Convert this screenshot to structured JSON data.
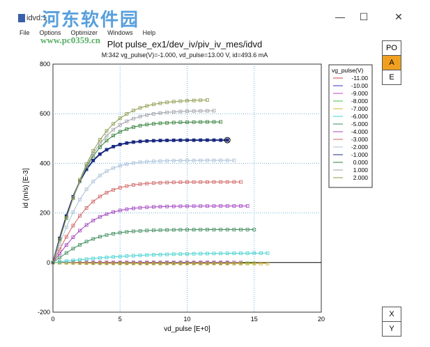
{
  "window": {
    "title": "idvd:1",
    "minimize": "—",
    "maximize": "☐",
    "close": "✕"
  },
  "watermark": {
    "name": "河东软件园",
    "url": "www.pc0359.cn"
  },
  "menu": [
    "File",
    "Options",
    "Optimizer",
    "Windows",
    "Help"
  ],
  "plot": {
    "title": "Plot pulse_ex1/dev_iv/piv_iv_mes/idvd",
    "marker_info": "M:342 vg_pulse(V)=-1.000, vd_pulse=13.00  V, id=493.6  mA"
  },
  "side_buttons": {
    "po": "PO",
    "a": "A",
    "e": "E",
    "x": "X",
    "y": "Y"
  },
  "chart_data": {
    "type": "line",
    "xlabel": "vd_pulse  [E+0]",
    "ylabel": "id (m/s)  [E-3]",
    "xlim": [
      0,
      20
    ],
    "ylim": [
      -200,
      800
    ],
    "xticks": [
      "0",
      "5",
      "10",
      "15",
      "20"
    ],
    "yticks": [
      "-200",
      "0",
      "200",
      "400",
      "600",
      "800"
    ],
    "legend_title": "vg_pulse(V)",
    "legend_placement": "right",
    "marker": {
      "x": 13,
      "y": 493.6
    },
    "series": [
      {
        "name": "-11.00",
        "color": "#d04040",
        "xmax": 13,
        "sat": 0,
        "k": 0.3
      },
      {
        "name": "-10.00",
        "color": "#3030c0",
        "xmax": 13,
        "sat": 0,
        "k": 0.3
      },
      {
        "name": "-9.000",
        "color": "#c040c0",
        "xmax": 14,
        "sat": 0,
        "k": 0.3
      },
      {
        "name": "-8.000",
        "color": "#40c040",
        "xmax": 15,
        "sat": -3,
        "k": 0.3
      },
      {
        "name": "-7.000",
        "color": "#d0b030",
        "xmax": 16,
        "sat": -4,
        "k": 0.3
      },
      {
        "name": "-6.000",
        "color": "#40d0d0",
        "xmax": 16,
        "sat": 38,
        "k": 0.15
      },
      {
        "name": "-5.000",
        "color": "#3a8a5a",
        "xmax": 15,
        "sat": 133,
        "k": 0.3
      },
      {
        "name": "-4.000",
        "color": "#a040c0",
        "xmax": 14.5,
        "sat": 228,
        "k": 0.32
      },
      {
        "name": "-3.000",
        "color": "#d06060",
        "xmax": 14,
        "sat": 325,
        "k": 0.33
      },
      {
        "name": "-2.000",
        "color": "#a8c0d8",
        "xmax": 13.5,
        "sat": 412,
        "k": 0.36
      },
      {
        "name": "-1.000",
        "color": "#1a2a80",
        "xmax": 13,
        "sat": 493.6,
        "k": 0.4
      },
      {
        "name": "0.000",
        "color": "#2e7d32",
        "xmax": 12.5,
        "sat": 567,
        "k": 0.33
      },
      {
        "name": "1.000",
        "color": "#a0a0a8",
        "xmax": 12,
        "sat": 612,
        "k": 0.3
      },
      {
        "name": "2.000",
        "color": "#8a9a4a",
        "xmax": 11.5,
        "sat": 655,
        "k": 0.28
      }
    ]
  }
}
